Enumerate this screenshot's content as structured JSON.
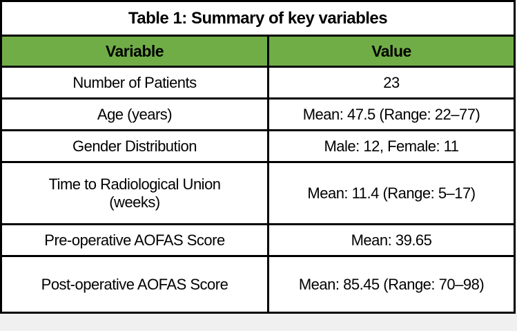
{
  "title": "Table 1: Summary of key variables",
  "header_color": "#70ad47",
  "columns": [
    "Variable",
    "Value"
  ],
  "rows": [
    {
      "variable": "Number of Patients",
      "value": "23"
    },
    {
      "variable": "Age (years)",
      "value": "Mean: 47.5 (Range: 22–77)"
    },
    {
      "variable": "Gender Distribution",
      "value": "Male: 12, Female: 11"
    },
    {
      "variable": "Time to Radiological Union (weeks)",
      "value": "Mean: 11.4 (Range: 5–17)"
    },
    {
      "variable": "Pre-operative AOFAS Score",
      "value": "Mean: 39.65"
    },
    {
      "variable": "Post-operative AOFAS Score",
      "value": "Mean: 85.45 (Range: 70–98)"
    }
  ]
}
